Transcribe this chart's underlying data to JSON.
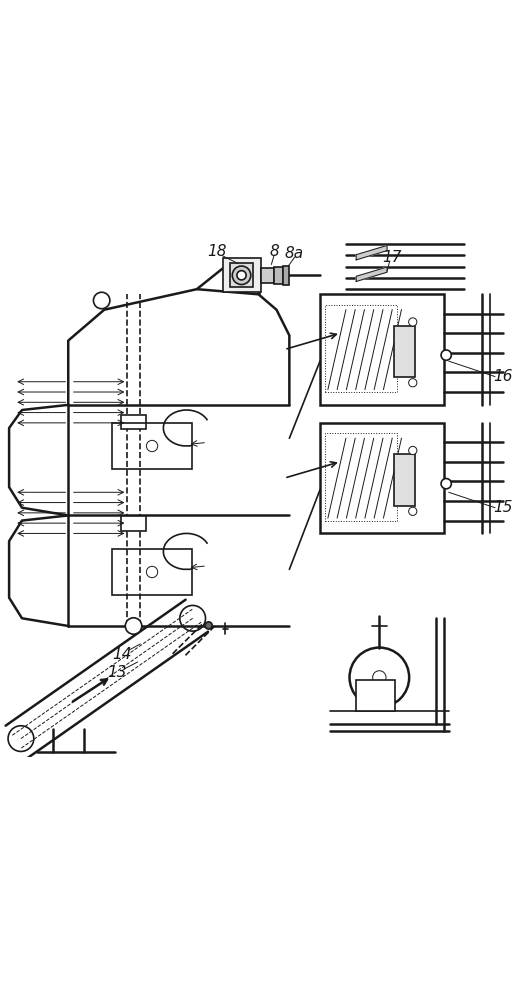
{
  "bg_color": "#ffffff",
  "line_color": "#1a1a1a",
  "lw": 1.2,
  "lw_thick": 1.8,
  "lw_thin": 0.7,
  "fontsize": 11
}
